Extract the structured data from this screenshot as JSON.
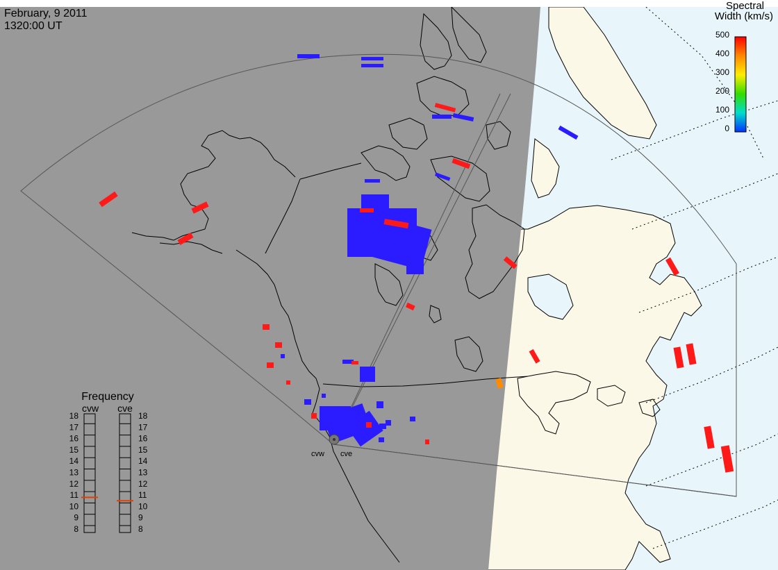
{
  "header": {
    "date": "February, 9 2011",
    "time": "1320:00 UT"
  },
  "colorbar": {
    "title_line1": "Spectral",
    "title_line2": "Width (km/s)",
    "ticks": [
      "500",
      "400",
      "300",
      "200",
      "100",
      "0"
    ],
    "gradient_colors": [
      "#ff0000",
      "#ff8800",
      "#ffee00",
      "#33dd00",
      "#00ddcc",
      "#0033ff"
    ]
  },
  "frequency_panel": {
    "title": "Frequency",
    "radars": [
      {
        "label": "cvw",
        "value_mhz": 10.8
      },
      {
        "label": "cve",
        "value_mhz": 10.5
      }
    ],
    "ticks": [
      "18",
      "17",
      "16",
      "15",
      "14",
      "13",
      "12",
      "11",
      "10",
      "9",
      "8"
    ],
    "indicator_color": "#e04000"
  },
  "radars": [
    {
      "label": "cvw"
    },
    {
      "label": "cve"
    }
  ],
  "colors": {
    "night_side": "#999999",
    "day_land": "#fcf8e8",
    "day_ocean": "#e8f6fc",
    "echo_low_width": "#2a1cff",
    "echo_high_width": "#ff1a1a",
    "echo_mid_width": "#ff8c00"
  }
}
